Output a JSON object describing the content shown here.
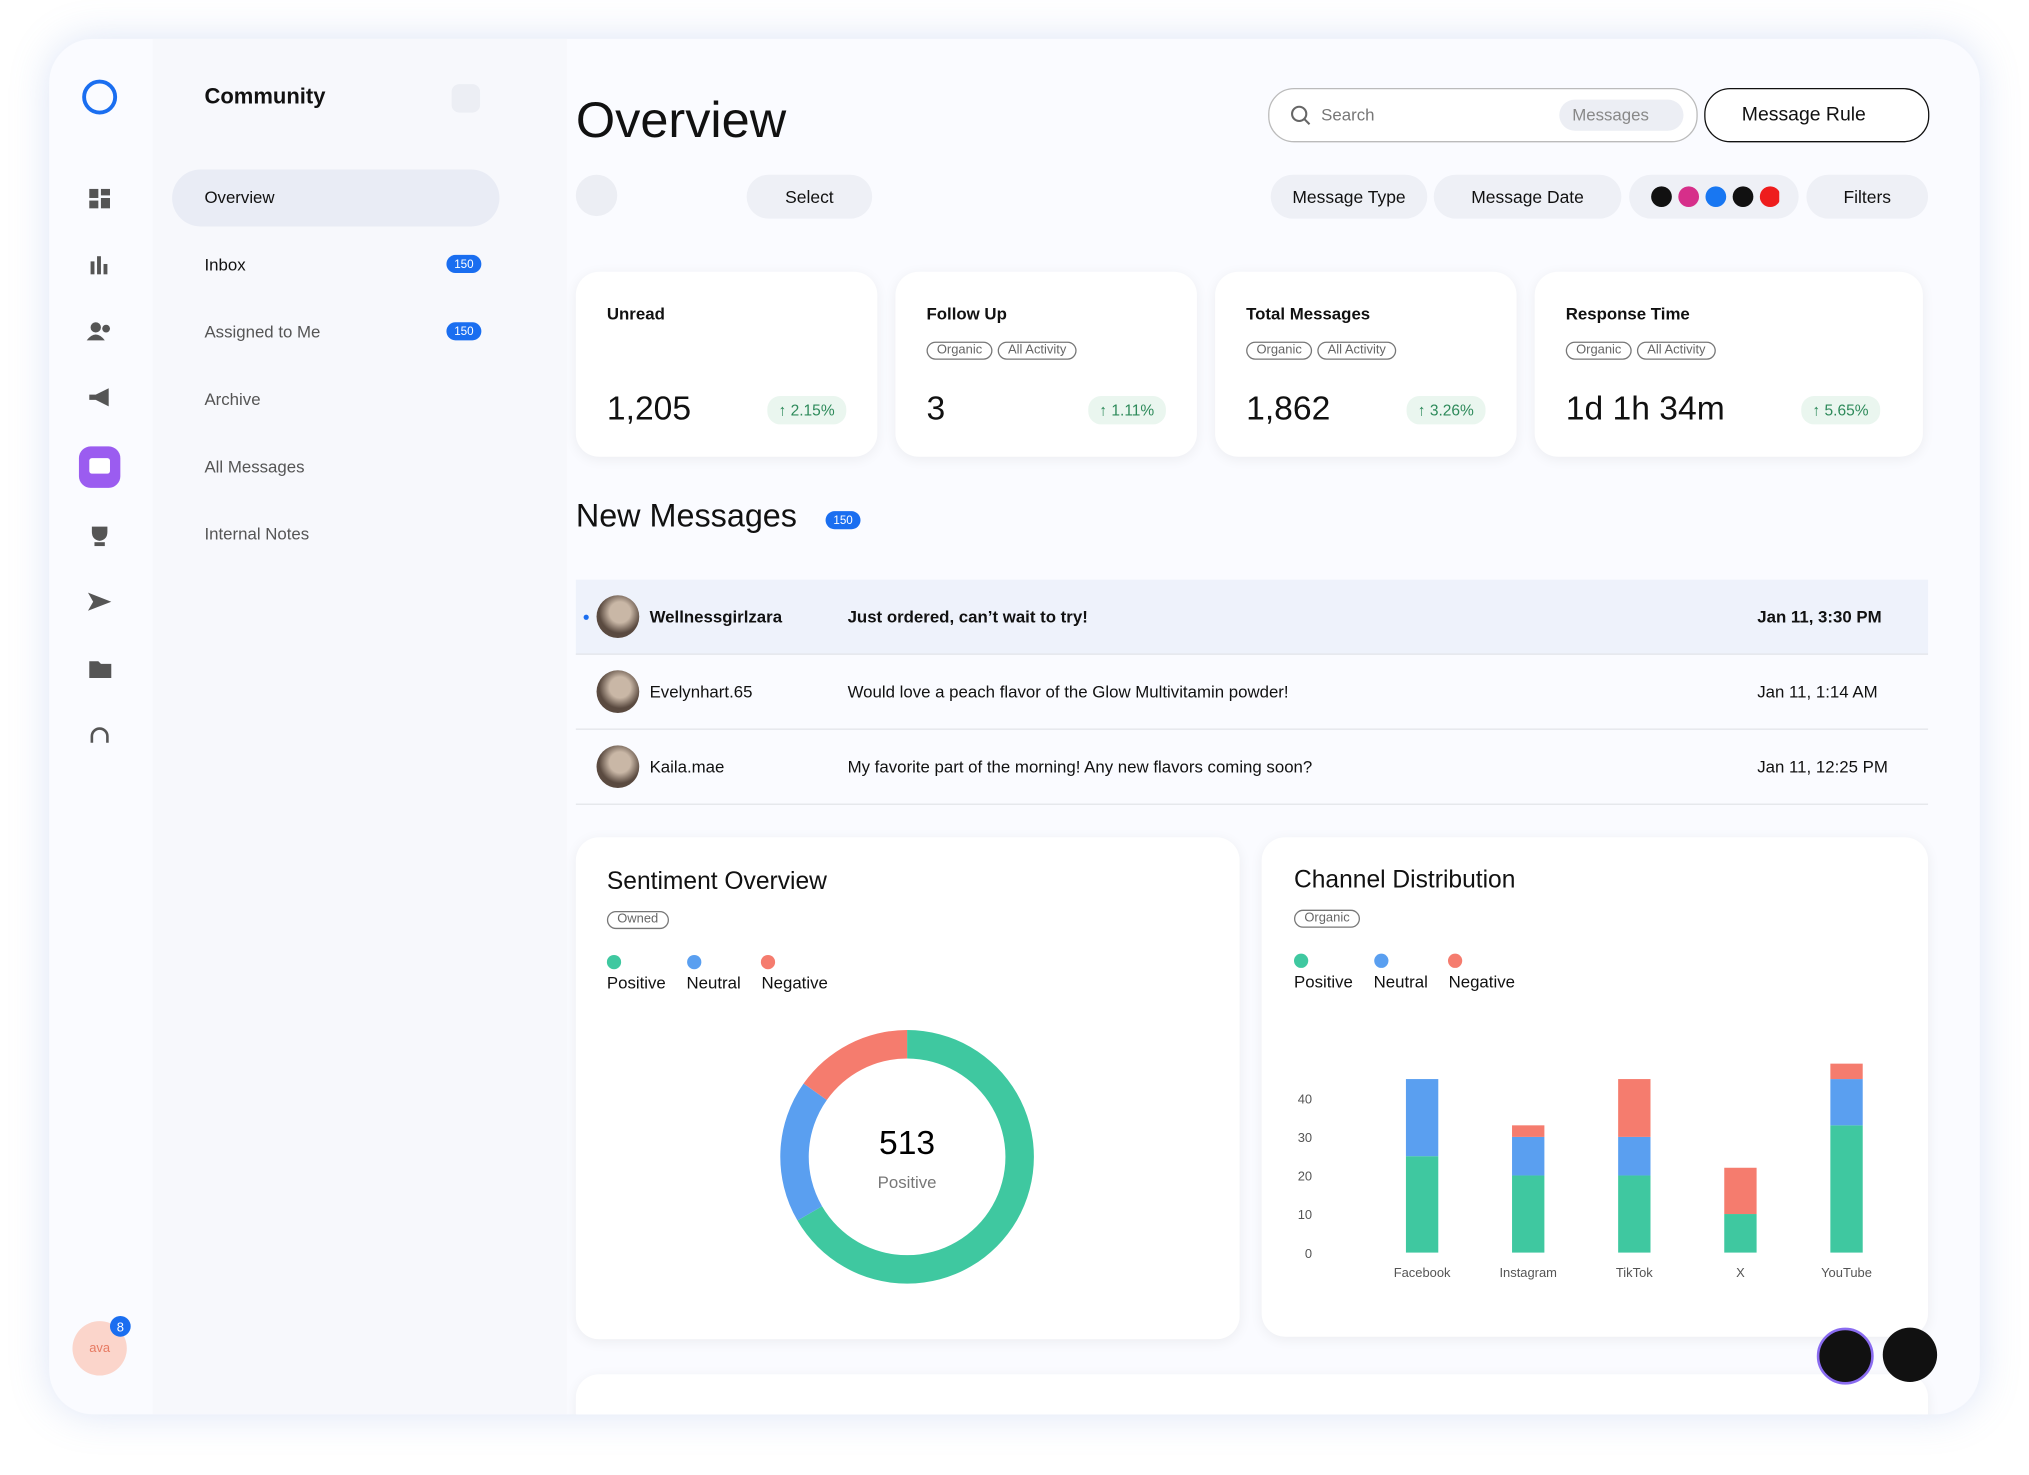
{
  "sidebar": {
    "title": "Community",
    "nav": [
      {
        "label": "Overview"
      },
      {
        "label": "Inbox",
        "badge": "150"
      },
      {
        "label": "Assigned to Me",
        "badge": "150"
      },
      {
        "label": "Archive"
      },
      {
        "label": "All Messages"
      },
      {
        "label": "Internal Notes"
      }
    ],
    "avatar": "ava",
    "avatar_badge": "8"
  },
  "header": {
    "title": "Overview",
    "search": "Search",
    "search_scope": "Messages",
    "rule_button": "Message Rule",
    "select": "Select",
    "filters": [
      "Message Type",
      "Message Date"
    ],
    "filter_button": "Filters"
  },
  "stats": [
    {
      "label": "Unread",
      "tags": [],
      "value": "1,205",
      "change": "2.15%"
    },
    {
      "label": "Follow Up",
      "tags": [
        "Organic",
        "All Activity"
      ],
      "value": "3",
      "change": "1.11%"
    },
    {
      "label": "Total Messages",
      "tags": [
        "Organic",
        "All Activity"
      ],
      "value": "1,862",
      "change": "3.26%"
    },
    {
      "label": "Response Time",
      "tags": [
        "Organic",
        "All Activity"
      ],
      "value": "1d 1h 34m",
      "change": "5.65%"
    }
  ],
  "messages": {
    "title": "New Messages",
    "badge": "150",
    "rows": [
      {
        "name": "Wellnessgirlzara",
        "text": "Just ordered, can’t wait to try!",
        "date": "Jan 11, 3:30 PM"
      },
      {
        "name": "Evelynhart.65",
        "text": "Would love a peach flavor of the Glow Multivitamin powder!",
        "date": "Jan 11, 1:14 AM"
      },
      {
        "name": "Kaila.mae",
        "text": "My favorite part of the morning! Any new flavors coming soon?",
        "date": "Jan 11, 12:25 PM"
      }
    ]
  },
  "chart_data": [
    {
      "type": "donut",
      "title": "Sentiment Overview",
      "tag": "Owned",
      "categories": [
        "Positive",
        "Neutral",
        "Negative"
      ],
      "values": [
        513,
        140,
        117
      ],
      "colors": [
        "#3fc8a0",
        "#5a9ff0",
        "#f57c6e"
      ]
    },
    {
      "type": "bar",
      "stacked": true,
      "title": "Channel Distribution",
      "tag": "Organic",
      "categories": [
        "Facebook",
        "Instagram",
        "TikTok",
        "X",
        "YouTube"
      ],
      "series": [
        {
          "name": "Positive",
          "color": "#3fc8a0",
          "values": [
            25,
            20,
            20,
            10,
            33
          ]
        },
        {
          "name": "Neutral",
          "color": "#5a9ff0",
          "values": [
            20,
            10,
            10,
            0,
            12
          ]
        },
        {
          "name": "Negative",
          "color": "#f57c6e",
          "values": [
            0,
            3,
            15,
            12,
            4
          ]
        }
      ],
      "ylim": [
        0,
        50
      ],
      "yticks": [
        0,
        10,
        20,
        30,
        40
      ]
    }
  ]
}
